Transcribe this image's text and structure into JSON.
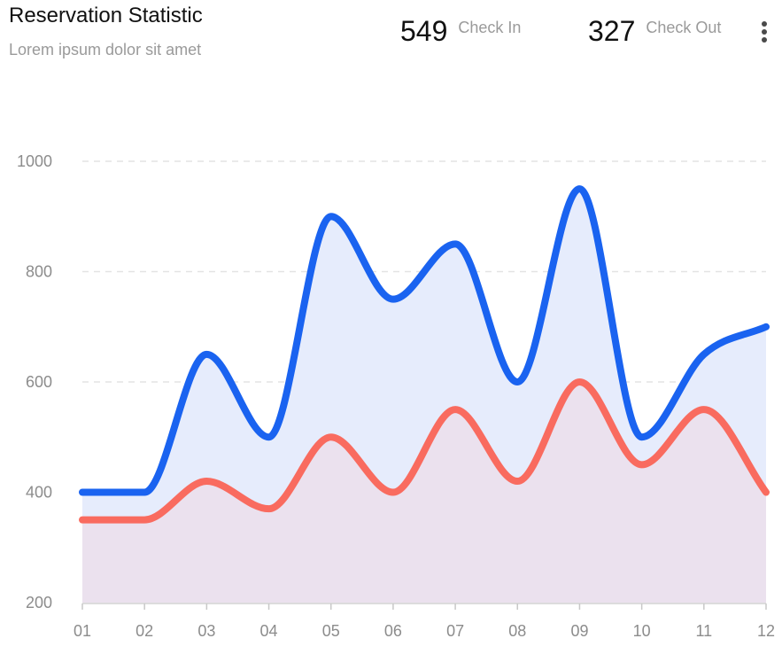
{
  "header": {
    "title": "Reservation Statistic",
    "subtitle": "Lorem ipsum dolor sit amet",
    "stats": [
      {
        "value": "549",
        "label": "Check In"
      },
      {
        "value": "327",
        "label": "Check Out"
      }
    ],
    "more_icon": "more-vertical-icon"
  },
  "colors": {
    "check_in": "#1a63f0",
    "check_out": "#f96b5f",
    "check_in_fill": "#e6ecfc",
    "check_out_fill": "#ebe1ee",
    "grid": "#e3e3e3"
  },
  "chart_data": {
    "type": "area",
    "categories": [
      "01",
      "02",
      "03",
      "04",
      "05",
      "06",
      "07",
      "08",
      "09",
      "10",
      "11",
      "12"
    ],
    "series": [
      {
        "values": [
          400,
          400,
          650,
          500,
          900,
          750,
          850,
          600,
          950,
          500,
          650,
          700
        ]
      },
      {
        "values": [
          350,
          350,
          420,
          370,
          500,
          400,
          550,
          420,
          600,
          450,
          550,
          400
        ]
      }
    ],
    "ylim": [
      200,
      1000
    ],
    "yticks": [
      1000,
      800,
      600,
      400,
      200
    ],
    "grid": true,
    "smooth": true
  }
}
